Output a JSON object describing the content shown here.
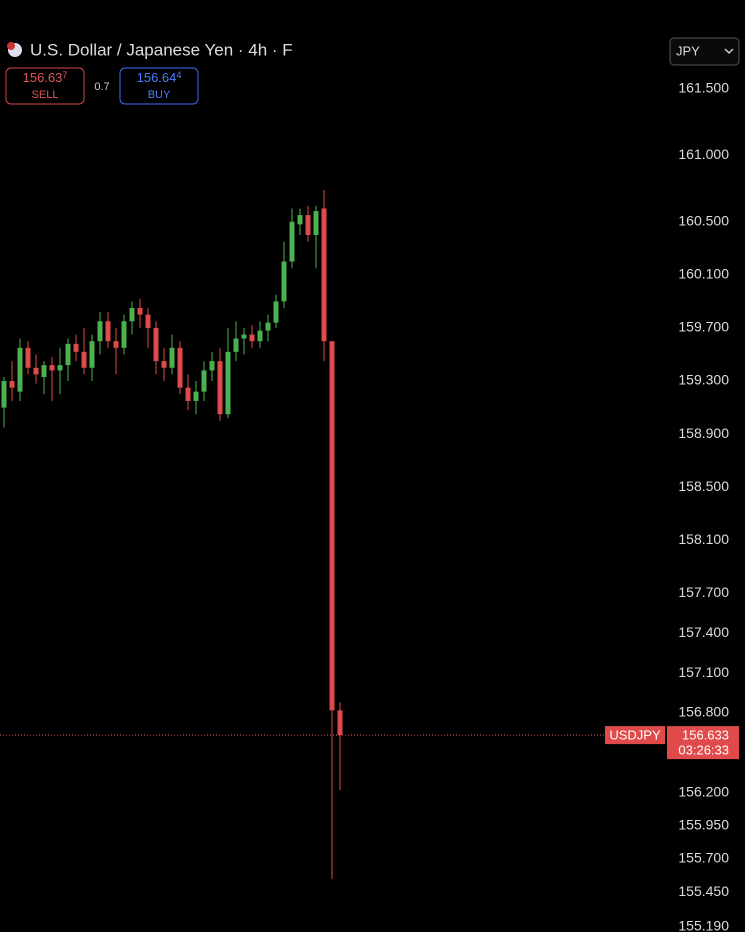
{
  "header": {
    "title": "U.S. Dollar / Japanese Yen · 4h · F",
    "sell": {
      "price": "156.63",
      "pip": "7",
      "label": "SELL"
    },
    "spread": "0.7",
    "buy": {
      "price": "156.64",
      "pip": "4",
      "label": "BUY"
    },
    "currency": "JPY"
  },
  "chart_data": {
    "type": "candlestick",
    "up_color": "#4caf50",
    "down_color": "#e04a4a",
    "ylim": [
      155.15,
      162.17
    ],
    "yticks": [
      {
        "value": 161.5,
        "label": "161.500"
      },
      {
        "value": 161.0,
        "label": "161.000"
      },
      {
        "value": 160.5,
        "label": "160.500"
      },
      {
        "value": 160.1,
        "label": "160.100"
      },
      {
        "value": 159.7,
        "label": "159.700"
      },
      {
        "value": 159.3,
        "label": "159.300"
      },
      {
        "value": 158.9,
        "label": "158.900"
      },
      {
        "value": 158.5,
        "label": "158.500"
      },
      {
        "value": 158.1,
        "label": "158.100"
      },
      {
        "value": 157.7,
        "label": "157.700"
      },
      {
        "value": 157.4,
        "label": "157.400"
      },
      {
        "value": 157.1,
        "label": "157.100"
      },
      {
        "value": 156.8,
        "label": "156.800"
      },
      {
        "value": 156.2,
        "label": "156.200"
      },
      {
        "value": 155.95,
        "label": "155.950"
      },
      {
        "value": 155.7,
        "label": "155.700"
      },
      {
        "value": 155.45,
        "label": "155.450"
      },
      {
        "value": 155.19,
        "label": "155.190"
      }
    ],
    "open": [
      159.1,
      159.3,
      159.22,
      159.55,
      159.4,
      159.33,
      159.42,
      159.38,
      159.42,
      159.58,
      159.52,
      159.4,
      159.6,
      159.75,
      159.6,
      159.55,
      159.75,
      159.85,
      159.8,
      159.7,
      159.45,
      159.4,
      159.55,
      159.25,
      159.15,
      159.22,
      159.38,
      159.45,
      159.05,
      159.52,
      159.62,
      159.65,
      159.6,
      159.68,
      159.74,
      159.9,
      160.2,
      160.48,
      160.55,
      160.4,
      160.6,
      159.6,
      156.82
    ],
    "high": [
      159.33,
      159.45,
      159.62,
      159.6,
      159.5,
      159.45,
      159.48,
      159.55,
      159.62,
      159.65,
      159.7,
      159.65,
      159.82,
      159.82,
      159.7,
      159.8,
      159.9,
      159.92,
      159.85,
      159.75,
      159.55,
      159.65,
      159.6,
      159.35,
      159.3,
      159.45,
      159.52,
      159.55,
      159.7,
      159.75,
      159.7,
      159.72,
      159.75,
      159.8,
      159.95,
      160.35,
      160.6,
      160.6,
      160.62,
      160.62,
      160.74,
      159.6,
      156.88
    ],
    "low": [
      158.95,
      159.15,
      159.15,
      159.35,
      159.28,
      159.2,
      159.15,
      159.2,
      159.3,
      159.45,
      159.35,
      159.3,
      159.5,
      159.55,
      159.35,
      159.5,
      159.65,
      159.7,
      159.55,
      159.35,
      159.3,
      159.35,
      159.2,
      159.08,
      159.05,
      159.15,
      159.3,
      159.0,
      159.02,
      159.45,
      159.5,
      159.55,
      159.55,
      159.6,
      159.7,
      159.85,
      160.15,
      160.4,
      160.35,
      160.15,
      159.45,
      155.55,
      156.22
    ],
    "close": [
      159.3,
      159.25,
      159.55,
      159.4,
      159.35,
      159.42,
      159.38,
      159.42,
      159.58,
      159.52,
      159.4,
      159.6,
      159.75,
      159.6,
      159.55,
      159.75,
      159.85,
      159.8,
      159.7,
      159.45,
      159.4,
      159.55,
      159.25,
      159.15,
      159.22,
      159.38,
      159.45,
      159.05,
      159.52,
      159.62,
      159.65,
      159.6,
      159.68,
      159.74,
      159.9,
      160.2,
      160.5,
      160.55,
      160.4,
      160.58,
      159.6,
      156.82,
      156.633
    ],
    "last_price": 156.633,
    "symbol": "USDJPY",
    "countdown": "03:26:33"
  }
}
